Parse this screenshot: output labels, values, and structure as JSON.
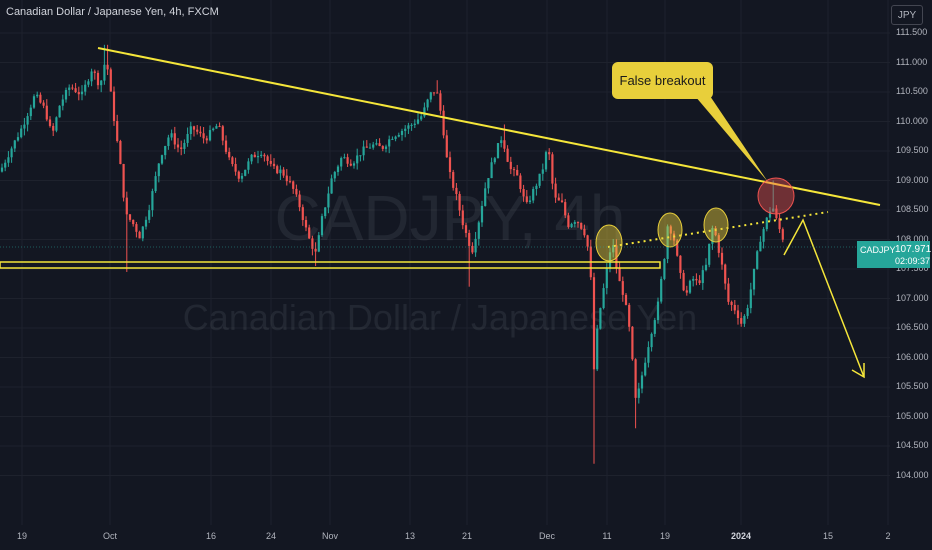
{
  "header": {
    "title": "Canadian Dollar / Japanese Yen, 4h, FXCM"
  },
  "currency_button": "JPY",
  "watermark": {
    "symbol": "CADJPY, 4h",
    "name": "Canadian Dollar / Japanese Yen"
  },
  "price_label": {
    "symbol": "CADJPY",
    "price": "107.971",
    "countdown": "02:09:37"
  },
  "annotation": {
    "text": "False breakout"
  },
  "colors": {
    "background": "#131722",
    "up": "#26a69a",
    "down": "#ef5350",
    "annotation": "#e8cf3b",
    "trendline": "#f5e63a"
  },
  "chart_data": {
    "type": "candlestick",
    "title": "Canadian Dollar / Japanese Yen, 4h, FXCM",
    "y_ticks": [
      "111.500",
      "111.000",
      "110.500",
      "110.000",
      "109.500",
      "109.000",
      "108.500",
      "108.000",
      "107.500",
      "107.000",
      "106.500",
      "106.000",
      "105.500",
      "105.000",
      "104.500",
      "104.000"
    ],
    "x_ticks": [
      "19",
      "Oct",
      "16",
      "24",
      "Nov",
      "13",
      "21",
      "Dec",
      "11",
      "19",
      "2024",
      "15",
      "2"
    ],
    "ylim": [
      103.8,
      111.6
    ],
    "price_path": [
      [
        0,
        109.15
      ],
      [
        10,
        109.5
      ],
      [
        22,
        109.9
      ],
      [
        35,
        110.45
      ],
      [
        45,
        110.2
      ],
      [
        52,
        109.75
      ],
      [
        60,
        110.3
      ],
      [
        70,
        110.6
      ],
      [
        82,
        110.45
      ],
      [
        92,
        110.9
      ],
      [
        100,
        110.6
      ],
      [
        106,
        111.1
      ],
      [
        112,
        110.3
      ],
      [
        120,
        109.3
      ],
      [
        126,
        108.4
      ],
      [
        132,
        108.3
      ],
      [
        140,
        108.05
      ],
      [
        150,
        108.6
      ],
      [
        160,
        109.4
      ],
      [
        170,
        109.8
      ],
      [
        180,
        109.5
      ],
      [
        192,
        109.9
      ],
      [
        205,
        109.7
      ],
      [
        218,
        109.95
      ],
      [
        230,
        109.3
      ],
      [
        240,
        109.05
      ],
      [
        252,
        109.4
      ],
      [
        262,
        109.5
      ],
      [
        272,
        109.2
      ],
      [
        282,
        109.15
      ],
      [
        292,
        108.9
      ],
      [
        300,
        108.55
      ],
      [
        308,
        108.05
      ],
      [
        316,
        107.75
      ],
      [
        322,
        108.35
      ],
      [
        332,
        109.05
      ],
      [
        342,
        109.4
      ],
      [
        352,
        109.3
      ],
      [
        362,
        109.5
      ],
      [
        372,
        109.6
      ],
      [
        382,
        109.55
      ],
      [
        392,
        109.75
      ],
      [
        402,
        109.85
      ],
      [
        412,
        109.95
      ],
      [
        422,
        110.1
      ],
      [
        430,
        110.45
      ],
      [
        436,
        110.55
      ],
      [
        442,
        110.05
      ],
      [
        448,
        109.2
      ],
      [
        456,
        108.75
      ],
      [
        464,
        108.2
      ],
      [
        472,
        107.8
      ],
      [
        478,
        108.25
      ],
      [
        486,
        108.95
      ],
      [
        494,
        109.4
      ],
      [
        502,
        109.75
      ],
      [
        510,
        109.2
      ],
      [
        518,
        109.05
      ],
      [
        526,
        108.55
      ],
      [
        534,
        108.85
      ],
      [
        542,
        109.15
      ],
      [
        548,
        109.6
      ],
      [
        554,
        108.7
      ],
      [
        562,
        108.6
      ],
      [
        568,
        108.25
      ],
      [
        576,
        108.35
      ],
      [
        584,
        108.15
      ],
      [
        590,
        107.7
      ],
      [
        594,
        105.8
      ],
      [
        598,
        106.6
      ],
      [
        604,
        107.2
      ],
      [
        612,
        108.0
      ],
      [
        618,
        107.35
      ],
      [
        624,
        107.05
      ],
      [
        630,
        106.4
      ],
      [
        636,
        105.2
      ],
      [
        642,
        105.7
      ],
      [
        650,
        106.35
      ],
      [
        658,
        106.9
      ],
      [
        664,
        107.65
      ],
      [
        668,
        108.3
      ],
      [
        674,
        108.0
      ],
      [
        680,
        107.4
      ],
      [
        686,
        107.05
      ],
      [
        692,
        107.35
      ],
      [
        698,
        107.25
      ],
      [
        706,
        107.55
      ],
      [
        712,
        108.2
      ],
      [
        716,
        108.05
      ],
      [
        722,
        107.55
      ],
      [
        728,
        106.95
      ],
      [
        736,
        106.8
      ],
      [
        742,
        106.55
      ],
      [
        748,
        106.9
      ],
      [
        754,
        107.45
      ],
      [
        760,
        108.0
      ],
      [
        766,
        108.3
      ],
      [
        772,
        108.6
      ],
      [
        776,
        108.35
      ],
      [
        782,
        108.05
      ],
      [
        786,
        107.95
      ]
    ],
    "lines": [
      {
        "name": "descending trendline",
        "from": [
          "Sep-late",
          111.45
        ],
        "to": [
          "2024-Jan-late",
          108.7
        ]
      },
      {
        "name": "support",
        "value": 107.9
      },
      {
        "name": "dotted neckline",
        "from": [
          "Dec-11",
          108.0
        ],
        "to": [
          "2024-Jan-14",
          108.52
        ]
      }
    ],
    "highlights": [
      {
        "label": "False breakout",
        "near": "2024-Jan",
        "value": 108.9
      }
    ]
  }
}
